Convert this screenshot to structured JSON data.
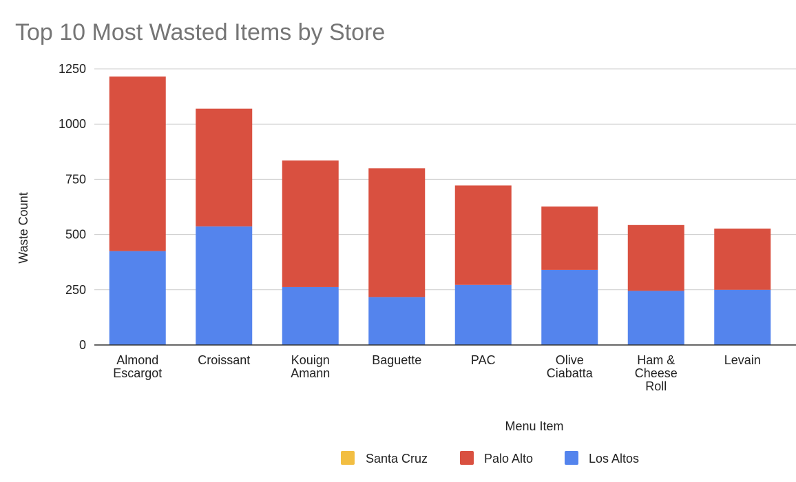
{
  "chart_data": {
    "type": "bar",
    "stacked": true,
    "title": "Top 10 Most Wasted Items by Store",
    "xlabel": "Menu Item",
    "ylabel": "Waste Count",
    "categories": [
      [
        "Almond",
        "Escargot"
      ],
      [
        "Croissant"
      ],
      [
        "Kouign",
        "Amann"
      ],
      [
        "Baguette"
      ],
      [
        "PAC"
      ],
      [
        "Olive",
        "Ciabatta"
      ],
      [
        "Ham &",
        "Cheese",
        "Roll"
      ],
      [
        "Levain"
      ]
    ],
    "series": [
      {
        "name": "Los Altos",
        "color": "#5484ed",
        "values": [
          425,
          537,
          262,
          217,
          272,
          340,
          245,
          250
        ]
      },
      {
        "name": "Palo Alto",
        "color": "#d95040",
        "values": [
          790,
          533,
          573,
          583,
          450,
          287,
          298,
          277
        ]
      },
      {
        "name": "Santa Cruz",
        "color": "#f2be42",
        "values": [
          0,
          0,
          0,
          0,
          0,
          0,
          0,
          0
        ]
      }
    ],
    "legend_order": [
      "Santa Cruz",
      "Palo Alto",
      "Los Altos"
    ],
    "ylim": [
      0,
      1250
    ],
    "yticks": [
      0,
      250,
      500,
      750,
      1000,
      1250
    ],
    "grid": true,
    "legend_position": "bottom"
  }
}
